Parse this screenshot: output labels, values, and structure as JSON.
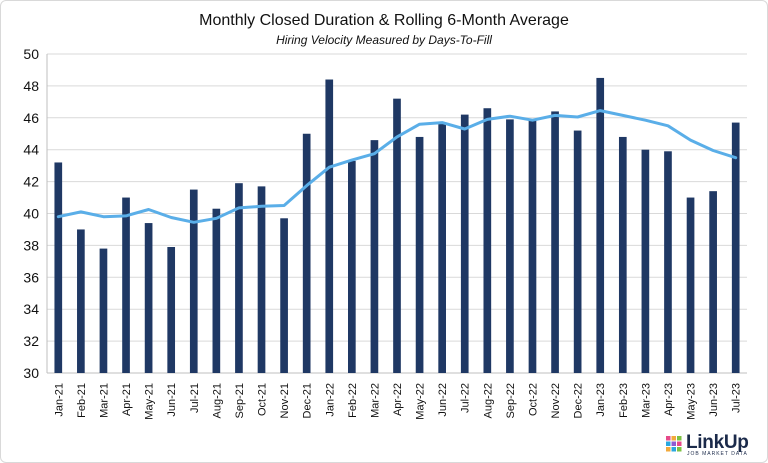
{
  "chart_data": {
    "type": "bar",
    "title": "Monthly Closed Duration & Rolling 6-Month Average",
    "subtitle": "Hiring Velocity Measured by Days-To-Fill",
    "xlabel": "",
    "ylabel": "",
    "ylim": [
      30,
      50
    ],
    "yticks": [
      30,
      32,
      34,
      36,
      38,
      40,
      42,
      44,
      46,
      48,
      50
    ],
    "grid": true,
    "categories": [
      "Jan-21",
      "Feb-21",
      "Mar-21",
      "Apr-21",
      "May-21",
      "Jun-21",
      "Jul-21",
      "Aug-21",
      "Sep-21",
      "Oct-21",
      "Nov-21",
      "Dec-21",
      "Jan-22",
      "Feb-22",
      "Mar-22",
      "Apr-22",
      "May-22",
      "Jun-22",
      "Jul-22",
      "Aug-22",
      "Sep-22",
      "Oct-22",
      "Nov-22",
      "Dec-22",
      "Jan-23",
      "Feb-23",
      "Mar-23",
      "Apr-23",
      "May-23",
      "Jun-23",
      "Jul-23"
    ],
    "series": [
      {
        "type": "bar",
        "color": "#1f3864",
        "values": [
          43.2,
          39.0,
          37.8,
          41.0,
          39.4,
          37.9,
          41.5,
          40.3,
          41.9,
          41.7,
          39.7,
          45.0,
          48.4,
          43.3,
          44.6,
          47.2,
          44.8,
          45.7,
          46.2,
          46.6,
          45.9,
          45.9,
          46.4,
          45.2,
          48.5,
          44.8,
          44.0,
          43.9,
          41.0,
          41.4,
          45.7
        ]
      },
      {
        "type": "line",
        "color": "#5aaee8",
        "values": [
          39.8,
          40.1,
          39.8,
          39.85,
          40.25,
          39.75,
          39.45,
          39.7,
          40.35,
          40.45,
          40.5,
          41.75,
          42.9,
          43.35,
          43.75,
          44.8,
          45.6,
          45.7,
          45.3,
          45.9,
          46.1,
          45.85,
          46.15,
          46.05,
          46.45,
          46.15,
          45.85,
          45.5,
          44.6,
          43.95,
          43.5
        ]
      }
    ]
  },
  "logo": {
    "name": "LinkUp",
    "tagline": "JOB MARKET DATA",
    "grid_colors": [
      "#e64a8a",
      "#f2a93b",
      "#7cc242",
      "#2aa7df",
      "#8e5bd2",
      "#e64a8a",
      "#f2a93b",
      "#2aa7df",
      "#7cc242"
    ]
  }
}
